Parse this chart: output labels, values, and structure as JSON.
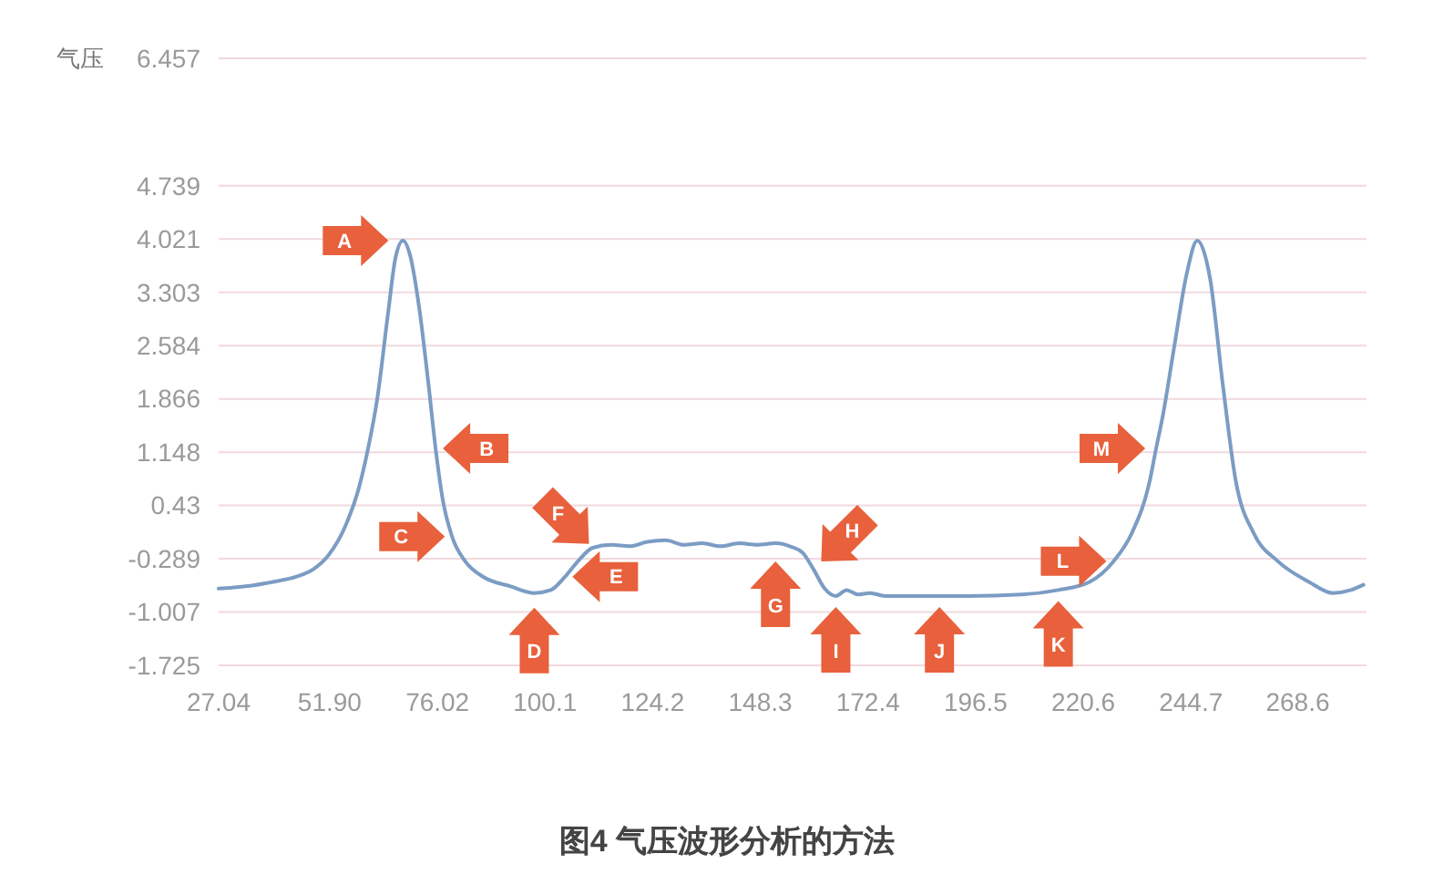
{
  "chart_data": {
    "type": "line",
    "title": "图4 气压波形分析的方法",
    "ylabel": "气压",
    "x": [
      27.04,
      33.1,
      39.2,
      44.5,
      48.2,
      51.5,
      55.6,
      58.4,
      60.5,
      62.5,
      65.0,
      66.6,
      68.3,
      69.9,
      71.9,
      74.0,
      75.6,
      77.2,
      79.3,
      82.2,
      86.2,
      92.4,
      97.7,
      101.4,
      104.6,
      107.5,
      110.8,
      114.9,
      119.0,
      123.0,
      127.1,
      131.2,
      135.3,
      139.4,
      143.5,
      147.6,
      151.7,
      154.9,
      157.8,
      160.2,
      162.7,
      165.2,
      167.6,
      170.1,
      172.9,
      176.2,
      182.3,
      188.4,
      194.6,
      206.9,
      215.0,
      222.0,
      227.4,
      231.4,
      235.5,
      236.9,
      238.4,
      240.9,
      243.7,
      246.1,
      249.0,
      251.8,
      254.7,
      258.8,
      264.1,
      271.1,
      276.4,
      280.5,
      283.3
    ],
    "series": [
      {
        "color": "#7b9cc4",
        "values": [
          -0.69,
          -0.66,
          -0.6,
          -0.53,
          -0.43,
          -0.25,
          0.18,
          0.66,
          1.2,
          1.85,
          3.04,
          3.76,
          4.0,
          3.8,
          3.11,
          2.07,
          1.2,
          0.51,
          0.01,
          -0.32,
          -0.53,
          -0.66,
          -0.75,
          -0.71,
          -0.53,
          -0.32,
          -0.14,
          -0.1,
          -0.12,
          -0.06,
          -0.04,
          -0.1,
          -0.08,
          -0.12,
          -0.08,
          -0.1,
          -0.08,
          -0.12,
          -0.21,
          -0.43,
          -0.69,
          -0.79,
          -0.71,
          -0.77,
          -0.75,
          -0.79,
          -0.79,
          -0.79,
          -0.79,
          -0.77,
          -0.71,
          -0.6,
          -0.32,
          0.05,
          0.77,
          1.2,
          1.64,
          2.55,
          3.54,
          4.0,
          3.48,
          2.07,
          0.77,
          0.05,
          -0.32,
          -0.6,
          -0.75,
          -0.71,
          -0.64
        ]
      }
    ],
    "xlim": [
      27.04,
      284
    ],
    "xticks": [
      27.04,
      {
        "value": 51.9,
        "label": "51.90"
      },
      76.02,
      100.1,
      124.2,
      148.3,
      172.4,
      196.5,
      220.6,
      244.7,
      268.6
    ],
    "ylim": [
      -1.725,
      6.457
    ],
    "yticks": [
      -1.725,
      -1.007,
      -0.289,
      0.43,
      1.148,
      1.866,
      2.584,
      3.303,
      4.021,
      4.739,
      6.457
    ],
    "grid": "y",
    "annotations": [
      {
        "text": "A",
        "x": 68.3,
        "y": 4.0
      },
      {
        "text": "B",
        "x": 75.6,
        "y": 1.2
      },
      {
        "text": "C",
        "x": 79.3,
        "y": 0.01
      },
      {
        "text": "D",
        "x": 97.7,
        "y": -0.75
      },
      {
        "text": "E",
        "x": 104.6,
        "y": -0.53
      },
      {
        "text": "F",
        "x": 110.8,
        "y": -0.14
      },
      {
        "text": "G",
        "x": 151.7,
        "y": -0.08
      },
      {
        "text": "H",
        "x": 160.2,
        "y": -0.43
      },
      {
        "text": "I",
        "x": 165.2,
        "y": -0.79
      },
      {
        "text": "J",
        "x": 188.4,
        "y": -0.79
      },
      {
        "text": "K",
        "x": 215.0,
        "y": -0.71
      },
      {
        "text": "L",
        "x": 227.4,
        "y": -0.32
      },
      {
        "text": "M",
        "x": 236.9,
        "y": 1.2
      }
    ]
  }
}
